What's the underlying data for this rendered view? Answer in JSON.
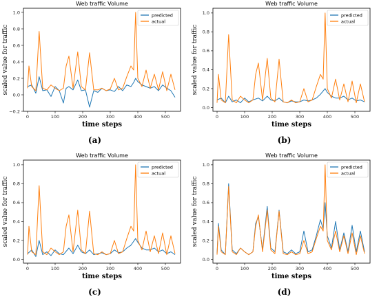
{
  "colors": {
    "predicted": "#1f77b4",
    "actual": "#ff7f0e",
    "frame": "#000000"
  },
  "chart_data": [
    {
      "type": "line",
      "title": "Web traffic Volume",
      "xlabel": "time steps",
      "ylabel": "scaled value for traffic",
      "caption": "(a)",
      "xlim": [
        -15,
        555
      ],
      "ylim": [
        -0.2,
        1.05
      ],
      "xticks": [
        0,
        100,
        200,
        300,
        400,
        500
      ],
      "xtick_labels": [
        "0",
        "100",
        "200",
        "300",
        "400",
        "500"
      ],
      "yticks": [
        -0.2,
        0,
        0.2,
        0.4,
        0.6,
        0.8,
        1.0
      ],
      "ytick_labels": [
        "−0.2",
        "0.0",
        "0.2",
        "0.4",
        "0.6",
        "0.8",
        "1.0"
      ],
      "legend": {
        "placement": "top-right",
        "labels": [
          "predicted",
          "actual"
        ]
      },
      "series": [
        {
          "name": "predicted",
          "color": "#1f77b4",
          "x": [
            0,
            15,
            30,
            42,
            55,
            70,
            85,
            100,
            115,
            130,
            140,
            150,
            165,
            182,
            195,
            210,
            225,
            240,
            255,
            270,
            285,
            300,
            315,
            330,
            345,
            360,
            375,
            385,
            392,
            400,
            415,
            430,
            445,
            460,
            475,
            490,
            505,
            520,
            535
          ],
          "y": [
            0.1,
            0.12,
            0.02,
            0.22,
            0.05,
            0.06,
            -0.02,
            0.1,
            0.05,
            -0.1,
            0.08,
            0.1,
            0.06,
            0.18,
            0.05,
            0.06,
            -0.15,
            0.05,
            0.03,
            0.08,
            0.05,
            0.06,
            0.04,
            0.1,
            0.05,
            0.12,
            0.1,
            0.15,
            0.2,
            0.16,
            0.12,
            0.1,
            0.08,
            0.1,
            0.05,
            0.12,
            0.08,
            0.05,
            -0.03
          ]
        },
        {
          "name": "actual",
          "color": "#ff7f0e",
          "x": [
            0,
            5,
            15,
            30,
            42,
            55,
            70,
            85,
            100,
            115,
            130,
            140,
            150,
            165,
            182,
            195,
            210,
            225,
            240,
            255,
            270,
            285,
            300,
            315,
            330,
            345,
            360,
            375,
            385,
            392,
            400,
            415,
            430,
            445,
            460,
            475,
            490,
            505,
            520,
            535
          ],
          "y": [
            0.08,
            0.35,
            0.1,
            0.05,
            0.77,
            0.08,
            0.06,
            0.12,
            0.08,
            0.05,
            0.08,
            0.35,
            0.47,
            0.08,
            0.52,
            0.1,
            0.06,
            0.51,
            0.06,
            0.06,
            0.08,
            0.05,
            0.07,
            0.2,
            0.06,
            0.08,
            0.22,
            0.35,
            0.3,
            1.0,
            0.2,
            0.1,
            0.3,
            0.08,
            0.25,
            0.06,
            0.28,
            0.05,
            0.25,
            0.06
          ]
        }
      ]
    },
    {
      "type": "line",
      "title": "Web traffic Volume",
      "xlabel": "time steps",
      "ylabel": "scaled value for traffic",
      "caption": "(b)",
      "xlim": [
        -15,
        555
      ],
      "ylim": [
        -0.04,
        1.05
      ],
      "xticks": [
        0,
        100,
        200,
        300,
        400,
        500
      ],
      "xtick_labels": [
        "0",
        "100",
        "200",
        "300",
        "400",
        "500"
      ],
      "yticks": [
        0,
        0.2,
        0.4,
        0.6,
        0.8,
        1.0
      ],
      "ytick_labels": [
        "0.0",
        "0.2",
        "0.4",
        "0.6",
        "0.8",
        "1.0"
      ],
      "legend": {
        "placement": "top-right",
        "labels": [
          "predicted",
          "actual"
        ]
      },
      "series": [
        {
          "name": "predicted",
          "color": "#1f77b4",
          "x": [
            0,
            15,
            30,
            42,
            55,
            70,
            85,
            100,
            115,
            130,
            150,
            165,
            182,
            195,
            210,
            225,
            240,
            255,
            270,
            285,
            300,
            315,
            330,
            345,
            360,
            375,
            392,
            400,
            415,
            430,
            445,
            460,
            475,
            490,
            505,
            520,
            535
          ],
          "y": [
            0.08,
            0.1,
            0.05,
            0.12,
            0.06,
            0.08,
            0.05,
            0.1,
            0.06,
            0.08,
            0.1,
            0.07,
            0.12,
            0.08,
            0.07,
            0.1,
            0.06,
            0.05,
            0.07,
            0.06,
            0.06,
            0.08,
            0.07,
            0.08,
            0.1,
            0.14,
            0.2,
            0.16,
            0.12,
            0.1,
            0.1,
            0.12,
            0.08,
            0.1,
            0.07,
            0.08,
            0.06
          ]
        },
        {
          "name": "actual",
          "color": "#ff7f0e",
          "x": [
            0,
            5,
            15,
            30,
            42,
            55,
            70,
            85,
            100,
            115,
            130,
            140,
            150,
            165,
            182,
            195,
            210,
            225,
            240,
            255,
            270,
            285,
            300,
            315,
            330,
            345,
            360,
            375,
            385,
            392,
            400,
            415,
            430,
            445,
            460,
            475,
            490,
            505,
            520,
            535
          ],
          "y": [
            0.05,
            0.35,
            0.08,
            0.05,
            0.77,
            0.08,
            0.05,
            0.12,
            0.08,
            0.05,
            0.08,
            0.35,
            0.47,
            0.08,
            0.52,
            0.1,
            0.06,
            0.51,
            0.06,
            0.05,
            0.08,
            0.05,
            0.06,
            0.2,
            0.06,
            0.08,
            0.22,
            0.35,
            0.3,
            1.0,
            0.2,
            0.1,
            0.3,
            0.08,
            0.25,
            0.06,
            0.28,
            0.05,
            0.25,
            0.06
          ]
        }
      ]
    },
    {
      "type": "line",
      "title": "Web traffic Volume",
      "xlabel": "time steps",
      "ylabel": "scaled value for traffic",
      "caption": "(c)",
      "xlim": [
        -15,
        555
      ],
      "ylim": [
        -0.04,
        1.05
      ],
      "xticks": [
        0,
        100,
        200,
        300,
        400,
        500
      ],
      "xtick_labels": [
        "0",
        "100",
        "200",
        "300",
        "400",
        "500"
      ],
      "yticks": [
        0,
        0.2,
        0.4,
        0.6,
        0.8,
        1.0
      ],
      "ytick_labels": [
        "0.0",
        "0.2",
        "0.4",
        "0.6",
        "0.8",
        "1.0"
      ],
      "legend": {
        "placement": "top-right",
        "labels": [
          "predicted",
          "actual"
        ]
      },
      "series": [
        {
          "name": "predicted",
          "color": "#1f77b4",
          "x": [
            0,
            15,
            30,
            42,
            55,
            70,
            85,
            100,
            115,
            130,
            150,
            165,
            182,
            195,
            210,
            225,
            240,
            255,
            270,
            285,
            300,
            315,
            330,
            345,
            360,
            375,
            392,
            400,
            415,
            430,
            445,
            460,
            475,
            490,
            505,
            520,
            535
          ],
          "y": [
            0.06,
            0.1,
            0.03,
            0.2,
            0.05,
            0.08,
            0.04,
            0.1,
            0.06,
            0.05,
            0.12,
            0.06,
            0.15,
            0.08,
            0.06,
            0.1,
            0.05,
            0.06,
            0.07,
            0.05,
            0.06,
            0.1,
            0.07,
            0.08,
            0.12,
            0.15,
            0.22,
            0.18,
            0.12,
            0.1,
            0.1,
            0.12,
            0.08,
            0.1,
            0.06,
            0.08,
            0.05
          ]
        },
        {
          "name": "actual",
          "color": "#ff7f0e",
          "x": [
            0,
            5,
            15,
            30,
            42,
            55,
            70,
            85,
            100,
            115,
            130,
            140,
            150,
            165,
            182,
            195,
            210,
            225,
            240,
            255,
            270,
            285,
            300,
            315,
            330,
            345,
            360,
            375,
            385,
            392,
            400,
            415,
            430,
            445,
            460,
            475,
            490,
            505,
            520,
            535
          ],
          "y": [
            0.05,
            0.35,
            0.08,
            0.05,
            0.78,
            0.08,
            0.05,
            0.12,
            0.08,
            0.05,
            0.08,
            0.35,
            0.47,
            0.08,
            0.52,
            0.1,
            0.06,
            0.51,
            0.06,
            0.05,
            0.08,
            0.05,
            0.06,
            0.2,
            0.06,
            0.08,
            0.22,
            0.35,
            0.3,
            1.0,
            0.2,
            0.1,
            0.3,
            0.08,
            0.25,
            0.06,
            0.28,
            0.05,
            0.25,
            0.06
          ]
        }
      ]
    },
    {
      "type": "line",
      "title": "Web traffic Volume",
      "xlabel": "time steps",
      "ylabel": "scaled value for traffic",
      "caption": "(d)",
      "xlim": [
        -15,
        555
      ],
      "ylim": [
        -0.04,
        1.05
      ],
      "xticks": [
        0,
        100,
        200,
        300,
        400,
        500
      ],
      "xtick_labels": [
        "0",
        "100",
        "200",
        "300",
        "400",
        "500"
      ],
      "yticks": [
        0,
        0.2,
        0.4,
        0.6,
        0.8,
        1.0
      ],
      "ytick_labels": [
        "0.0",
        "0.2",
        "0.4",
        "0.6",
        "0.8",
        "1.0"
      ],
      "legend": {
        "placement": "top-right",
        "labels": [
          "predicted",
          "actual"
        ]
      },
      "series": [
        {
          "name": "predicted",
          "color": "#1f77b4",
          "x": [
            0,
            5,
            15,
            30,
            42,
            55,
            70,
            85,
            100,
            115,
            130,
            140,
            150,
            165,
            182,
            195,
            210,
            225,
            240,
            255,
            270,
            285,
            300,
            315,
            330,
            345,
            360,
            375,
            385,
            392,
            400,
            415,
            430,
            445,
            460,
            475,
            490,
            505,
            520,
            535
          ],
          "y": [
            0.06,
            0.38,
            0.1,
            0.05,
            0.8,
            0.1,
            0.06,
            0.12,
            0.08,
            0.05,
            0.08,
            0.38,
            0.45,
            0.1,
            0.56,
            0.12,
            0.08,
            0.52,
            0.08,
            0.06,
            0.1,
            0.06,
            0.08,
            0.3,
            0.08,
            0.1,
            0.25,
            0.42,
            0.32,
            0.6,
            0.25,
            0.12,
            0.4,
            0.1,
            0.28,
            0.08,
            0.36,
            0.08,
            0.3,
            0.08
          ]
        },
        {
          "name": "actual",
          "color": "#ff7f0e",
          "x": [
            0,
            5,
            15,
            30,
            42,
            55,
            70,
            85,
            100,
            115,
            130,
            140,
            150,
            165,
            182,
            195,
            210,
            225,
            240,
            255,
            270,
            285,
            300,
            315,
            330,
            345,
            360,
            375,
            385,
            392,
            400,
            415,
            430,
            445,
            460,
            475,
            490,
            505,
            520,
            535
          ],
          "y": [
            0.05,
            0.35,
            0.08,
            0.05,
            0.77,
            0.08,
            0.05,
            0.12,
            0.08,
            0.05,
            0.08,
            0.35,
            0.47,
            0.08,
            0.52,
            0.1,
            0.06,
            0.51,
            0.06,
            0.05,
            0.08,
            0.05,
            0.06,
            0.2,
            0.06,
            0.08,
            0.22,
            0.35,
            0.3,
            1.0,
            0.2,
            0.1,
            0.3,
            0.08,
            0.25,
            0.06,
            0.28,
            0.05,
            0.25,
            0.06
          ]
        }
      ]
    }
  ]
}
